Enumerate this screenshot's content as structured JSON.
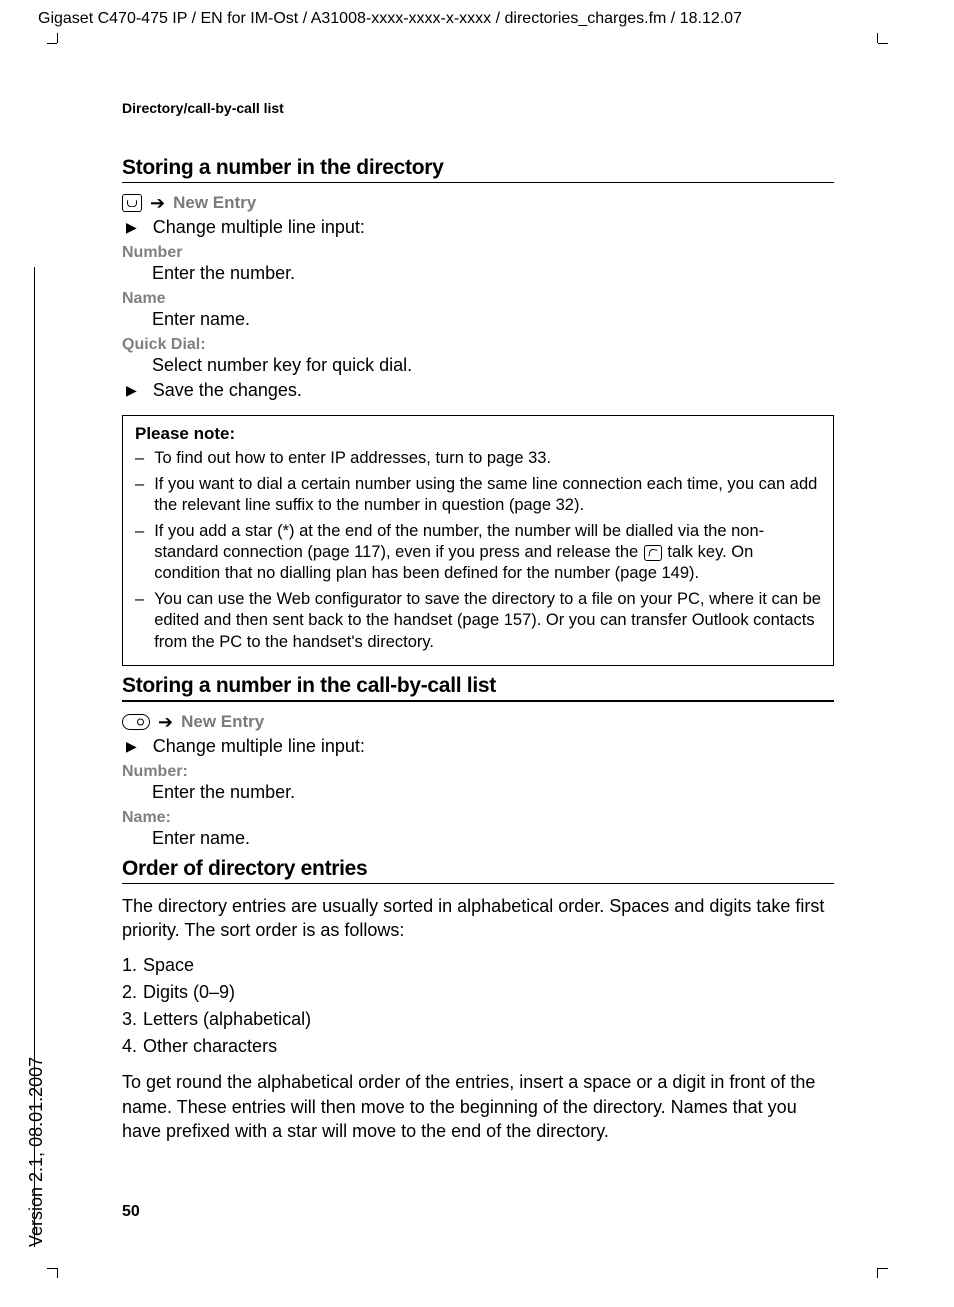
{
  "header_path": "Gigaset C470-475 IP / EN for IM-Ost / A31008-xxxx-xxxx-x-xxxx / directories_charges.fm / 18.12.07",
  "version_side": "Version 2.1, 08.01.2007",
  "running_head": "Directory/call-by-call list",
  "page_number": "50",
  "sections": {
    "s1": {
      "title": "Storing a number in the directory",
      "new_entry": "New Entry",
      "change_line": "Change multiple line input:",
      "fields": {
        "number_label": "Number",
        "number_desc": "Enter the number.",
        "name_label": "Name",
        "name_desc": "Enter name.",
        "quick_label": "Quick Dial:",
        "quick_desc": "Select number key for quick dial."
      },
      "save": "Save the changes."
    },
    "note": {
      "title": "Please note:",
      "items": [
        "To find out how to enter IP addresses, turn to page 33.",
        "If you want to dial a certain number using the same line connection each time, you can add the relevant line suffix to the number in question (page 32).",
        "If you add a star (*) at the end of the number, the number will be dialled via the non-standard connection (page 117), even if you press and release the |talk| talk key. On condition that no dialling plan has been defined for the number (page 149).",
        "You can use the Web configurator to save the directory to a file on your PC, where it can be edited and then sent back to the handset (page 157). Or you can transfer Outlook contacts from the PC to the handset's directory."
      ]
    },
    "s2": {
      "title": "Storing a number in the call-by-call list",
      "new_entry": "New Entry",
      "change_line": "Change multiple line input:",
      "fields": {
        "number_label": "Number:",
        "number_desc": "Enter the number.",
        "name_label": "Name:",
        "name_desc": "Enter name."
      }
    },
    "s3": {
      "title": "Order of directory entries",
      "para1": "The directory entries are usually sorted in alphabetical order. Spaces and digits take first priority. The sort order is as follows:",
      "list": [
        "Space",
        "Digits (0–9)",
        "Letters (alphabetical)",
        "Other characters"
      ],
      "para2": "To get round the alphabetical order of the entries, insert a space or a digit in front of the name. These entries will then move to the beginning of the directory. Names that you have prefixed with a star will move to the end of the directory."
    }
  }
}
